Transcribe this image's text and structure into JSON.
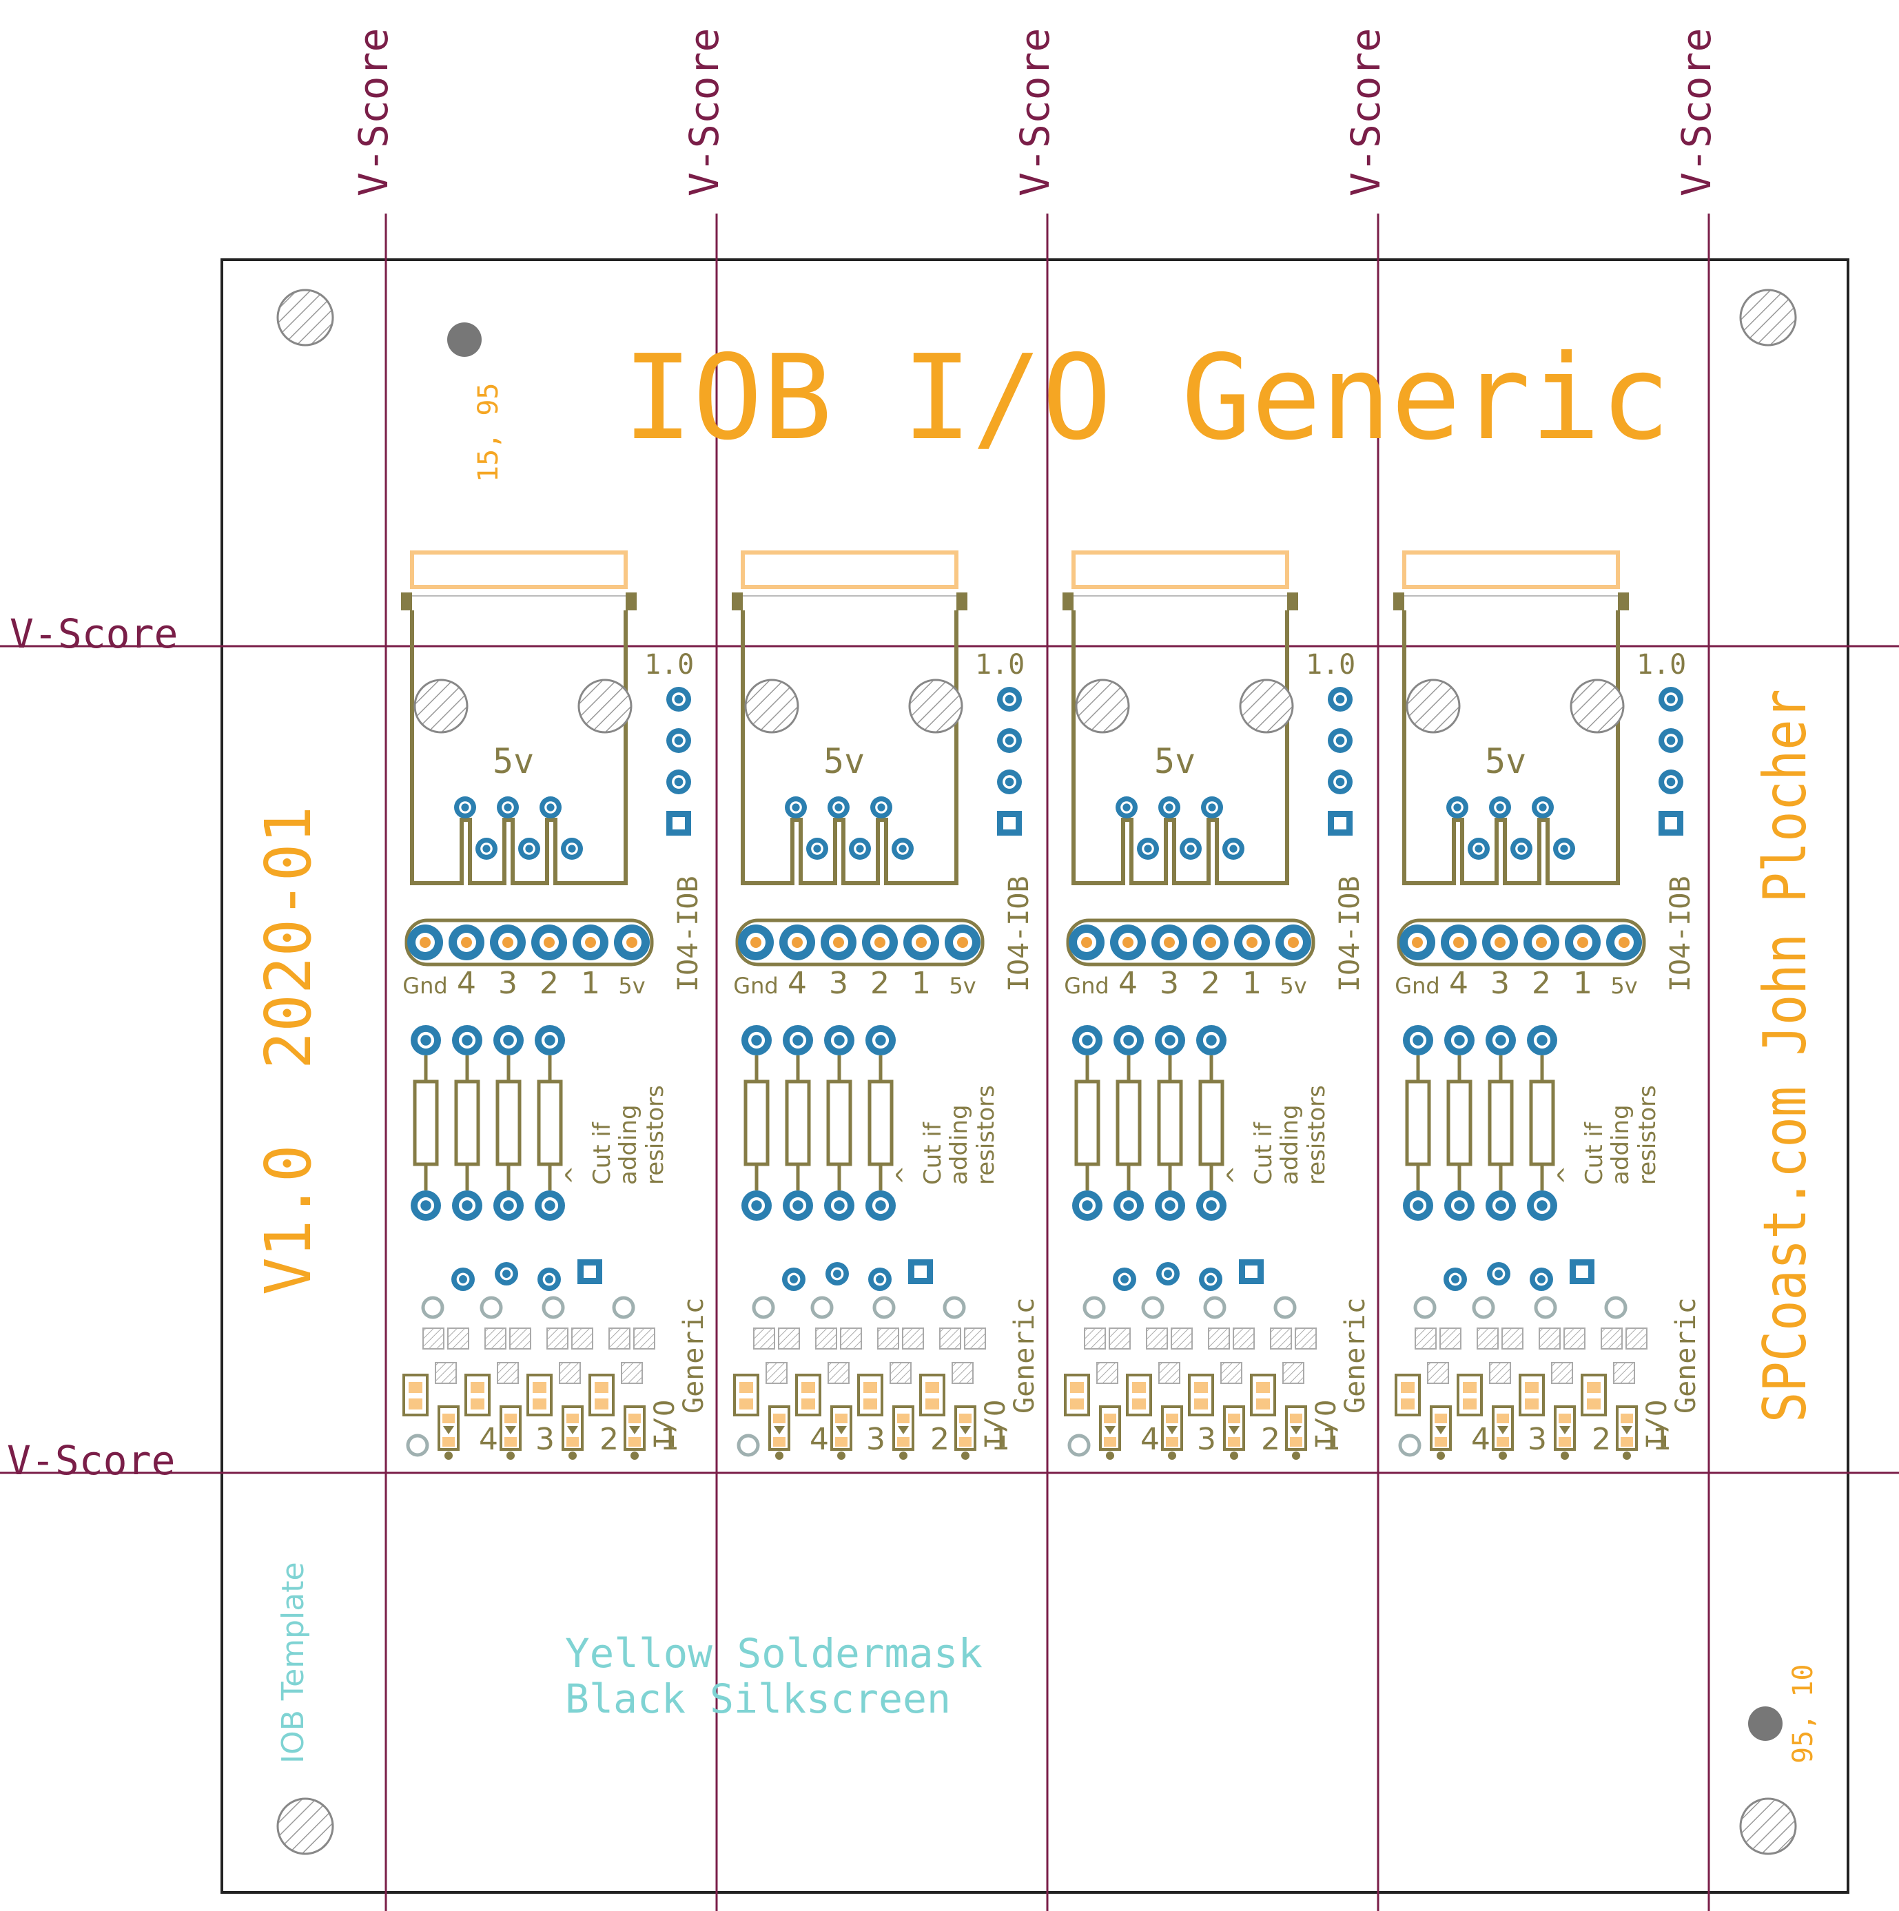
{
  "colors": {
    "background": "#ffffff",
    "outline": "#222222",
    "vscore": "#7a1e48",
    "orange": "#f5a623",
    "orange_light": "#f9c784",
    "olive": "#857c46",
    "pad_blue": "#2b7fb0",
    "pad_center": "#f0a03c",
    "hatch": "#999999",
    "cyan": "#7fd3d3",
    "marker_gray": "#777777",
    "ghost": "#9fb0b0"
  },
  "vscore_label": "V-Score",
  "title": "IOB I/O Generic",
  "coord_top": "15, 95",
  "coord_bottom": "95, 10",
  "left_version": "V1.0  2020-01",
  "right_credit": "SPCoast.com John Plocher",
  "bottom_template": "IOB Template",
  "bottom_note": [
    "Yellow Soldermask",
    "Black Silkscreen"
  ],
  "module": {
    "version": "1.0",
    "voltage": "5v",
    "connector_id": "IO4-IOB",
    "pins": [
      "Gnd",
      "4",
      "3",
      "2",
      "1",
      "5v"
    ],
    "cut_note": [
      "^",
      "Cut if",
      "adding",
      "resistors"
    ],
    "name_lines": [
      "I/O",
      "Generic"
    ],
    "led_numbers": [
      "4",
      "3",
      "2",
      "1"
    ]
  },
  "modules_count_label": ""
}
